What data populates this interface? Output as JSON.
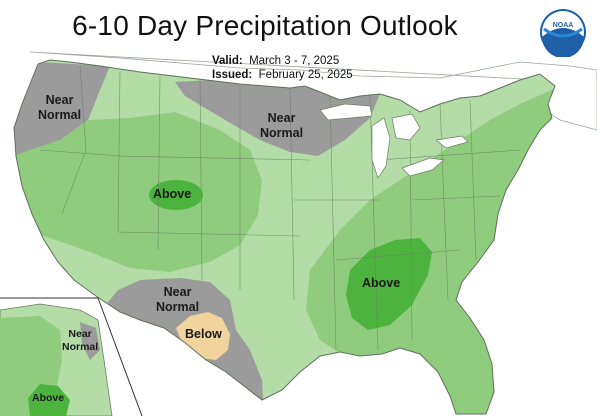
{
  "header": {
    "title": "6-10 Day Precipitation Outlook",
    "valid_label": "Valid:",
    "valid_value": "March 3 - 7, 2025",
    "issued_label": "Issued:",
    "issued_value": "February 25, 2025",
    "logo_text": "NOAA"
  },
  "regions": {
    "northwest": {
      "line1": "Near",
      "line2": "Normal"
    },
    "north_central": {
      "line1": "Near",
      "line2": "Normal"
    },
    "rockies": {
      "label": "Above"
    },
    "southeast": {
      "label": "Above"
    },
    "southwest": {
      "line1": "Near",
      "line2": "Normal"
    },
    "texas": {
      "label": "Below"
    },
    "alaska_near": {
      "line1": "Near",
      "line2": "Normal"
    },
    "alaska_above": {
      "label": "Above"
    }
  },
  "colors": {
    "near_normal": "#9b9b9b",
    "above_light": "#b3dca6",
    "above_mid": "#8fcc7d",
    "above_strong": "#4db33f",
    "below_light": "#f1d39d",
    "border": "#6b7d64"
  }
}
